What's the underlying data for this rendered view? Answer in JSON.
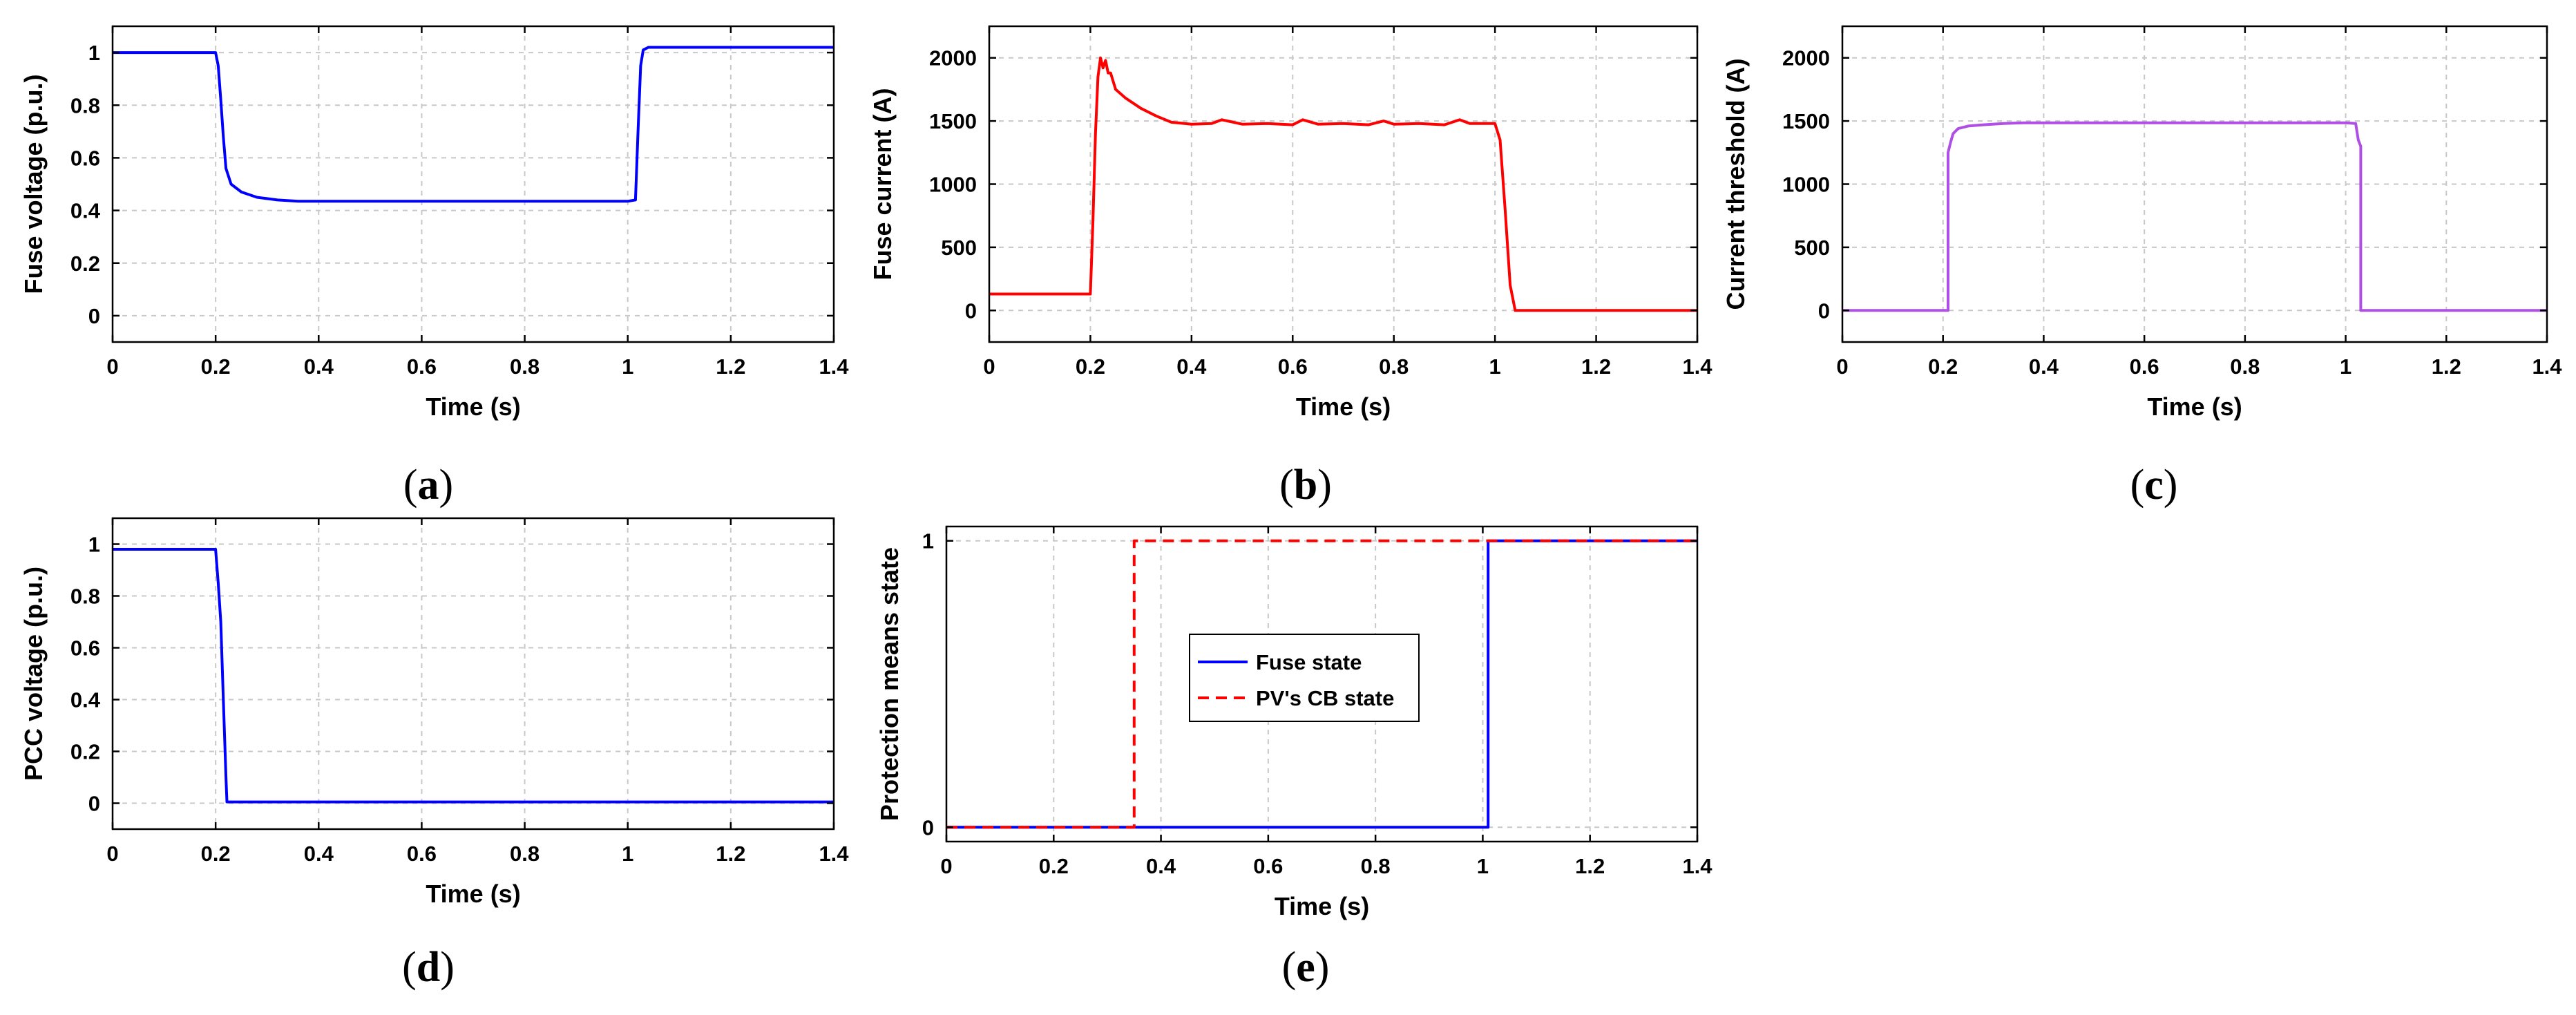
{
  "chart_data": [
    {
      "id": "a",
      "type": "line",
      "panel_label": "a",
      "xlabel": "Time (s)",
      "ylabel": "Fuse voltage (p.u.)",
      "xlim": [
        0,
        1.4
      ],
      "ylim": [
        -0.1,
        1.1
      ],
      "xticks": [
        0,
        0.2,
        0.4,
        0.6,
        0.8,
        1,
        1.2,
        1.4
      ],
      "yticks": [
        0,
        0.2,
        0.4,
        0.6,
        0.8,
        1
      ],
      "grid": true,
      "legend": null,
      "series": [
        {
          "name": "Fuse voltage",
          "color": "#0000ff",
          "dash": "solid",
          "x": [
            0,
            0.2,
            0.205,
            0.21,
            0.215,
            0.22,
            0.23,
            0.25,
            0.28,
            0.32,
            0.36,
            0.6,
            0.8,
            1.0,
            1.015,
            1.02,
            1.025,
            1.03,
            1.04,
            1.2,
            1.4
          ],
          "y": [
            1,
            1,
            0.95,
            0.82,
            0.68,
            0.56,
            0.5,
            0.47,
            0.45,
            0.44,
            0.435,
            0.435,
            0.435,
            0.435,
            0.44,
            0.7,
            0.95,
            1.01,
            1.02,
            1.02,
            1.02
          ]
        }
      ]
    },
    {
      "id": "b",
      "type": "line",
      "panel_label": "b",
      "xlabel": "Time (s)",
      "ylabel": "Fuse current (A)",
      "xlim": [
        0,
        1.4
      ],
      "ylim": [
        -250,
        2250
      ],
      "xticks": [
        0,
        0.2,
        0.4,
        0.6,
        0.8,
        1,
        1.2,
        1.4
      ],
      "yticks": [
        0,
        500,
        1000,
        1500,
        2000
      ],
      "grid": true,
      "legend": null,
      "series": [
        {
          "name": "Fuse current",
          "color": "#ff0000",
          "dash": "solid",
          "x": [
            0,
            0.2,
            0.205,
            0.21,
            0.215,
            0.22,
            0.225,
            0.23,
            0.235,
            0.24,
            0.25,
            0.27,
            0.3,
            0.33,
            0.36,
            0.4,
            0.44,
            0.46,
            0.5,
            0.55,
            0.6,
            0.62,
            0.65,
            0.7,
            0.75,
            0.78,
            0.8,
            0.85,
            0.9,
            0.93,
            0.95,
            1.0,
            1.01,
            1.02,
            1.03,
            1.04,
            1.2,
            1.4
          ],
          "y": [
            130,
            130,
            700,
            1400,
            1850,
            2000,
            1920,
            1980,
            1880,
            1880,
            1750,
            1680,
            1600,
            1540,
            1490,
            1475,
            1480,
            1510,
            1475,
            1480,
            1470,
            1510,
            1475,
            1480,
            1470,
            1500,
            1475,
            1480,
            1470,
            1510,
            1480,
            1480,
            1350,
            800,
            200,
            0,
            0,
            0
          ]
        }
      ]
    },
    {
      "id": "c",
      "type": "line",
      "panel_label": "c",
      "xlabel": "Time (s)",
      "ylabel": "Current threshold (A)",
      "xlim": [
        0,
        1.4
      ],
      "ylim": [
        -250,
        2250
      ],
      "xticks": [
        0,
        0.2,
        0.4,
        0.6,
        0.8,
        1,
        1.2,
        1.4
      ],
      "yticks": [
        0,
        500,
        1000,
        1500,
        2000
      ],
      "grid": true,
      "legend": null,
      "series": [
        {
          "name": "Current threshold",
          "color": "#b04fe6",
          "dash": "solid",
          "x": [
            0,
            0.21,
            0.21,
            0.215,
            0.22,
            0.23,
            0.25,
            0.28,
            0.32,
            0.36,
            0.6,
            0.8,
            1.0,
            1.02,
            1.025,
            1.03,
            1.03,
            1.4
          ],
          "y": [
            0,
            0,
            1250,
            1330,
            1400,
            1440,
            1460,
            1470,
            1480,
            1485,
            1485,
            1485,
            1485,
            1480,
            1350,
            1300,
            0,
            0
          ]
        }
      ]
    },
    {
      "id": "d",
      "type": "line",
      "panel_label": "d",
      "xlabel": "Time (s)",
      "ylabel": "PCC voltage (p.u.)",
      "xlim": [
        0,
        1.4
      ],
      "ylim": [
        -0.1,
        1.1
      ],
      "xticks": [
        0,
        0.2,
        0.4,
        0.6,
        0.8,
        1,
        1.2,
        1.4
      ],
      "yticks": [
        0,
        0.2,
        0.4,
        0.6,
        0.8,
        1
      ],
      "grid": true,
      "legend": null,
      "series": [
        {
          "name": "PCC voltage",
          "color": "#0000ff",
          "dash": "solid",
          "x": [
            0,
            0.2,
            0.205,
            0.21,
            0.215,
            0.22,
            0.222,
            0.23,
            1.4
          ],
          "y": [
            0.98,
            0.98,
            0.85,
            0.7,
            0.4,
            0.1,
            0.005,
            0.005,
            0.005
          ]
        }
      ]
    },
    {
      "id": "e",
      "type": "line",
      "panel_label": "e",
      "xlabel": "Time (s)",
      "ylabel": "Protection means state",
      "xlim": [
        0,
        1.4
      ],
      "ylim": [
        -0.05,
        1.05
      ],
      "xticks": [
        0,
        0.2,
        0.4,
        0.6,
        0.8,
        1,
        1.2,
        1.4
      ],
      "yticks": [
        0,
        1
      ],
      "grid": true,
      "legend": {
        "placement": "center",
        "entries": [
          "Fuse state",
          "PV's CB state"
        ]
      },
      "series": [
        {
          "name": "Fuse state",
          "color": "#0000ff",
          "dash": "solid",
          "x": [
            0,
            1.01,
            1.01,
            1.4
          ],
          "y": [
            0,
            0,
            1,
            1
          ]
        },
        {
          "name": "PV's CB state",
          "color": "#ff0000",
          "dash": "dashed",
          "x": [
            0,
            0.35,
            0.35,
            1.4
          ],
          "y": [
            0,
            0,
            1,
            1
          ]
        }
      ]
    }
  ]
}
